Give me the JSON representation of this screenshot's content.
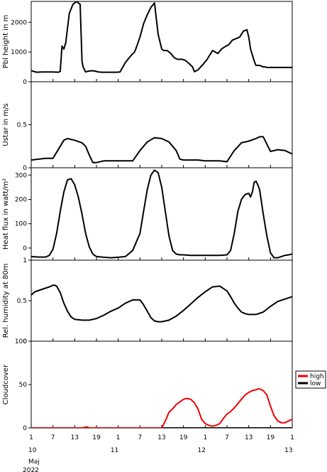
{
  "chart_data": {
    "type": "line",
    "x_axis": {
      "unit": "hours since 10 Maj 2022 01:00",
      "range": [
        0,
        72
      ],
      "tick_values": [
        0,
        6,
        12,
        18,
        24,
        30,
        36,
        42,
        48,
        54,
        60,
        66,
        72
      ],
      "tick_labels": [
        "1",
        "7",
        "13",
        "19",
        "1",
        "7",
        "13",
        "19",
        "1",
        "7",
        "13",
        "19",
        "1"
      ],
      "day_labels": [
        {
          "label": "10",
          "x": 0
        },
        {
          "label": "11",
          "x": 23
        },
        {
          "label": "12",
          "x": 47
        },
        {
          "label": "13",
          "x": 71
        }
      ],
      "month_label": "Maj",
      "year_label": "2022"
    },
    "panels": [
      {
        "ylabel": "Pbl height in m",
        "ylim": [
          0,
          2700
        ],
        "yticks": [
          0,
          1000,
          2000
        ],
        "series": [
          {
            "name": "",
            "color": "#000000",
            "x": [
              0,
              1.5,
              3,
              4.5,
              6,
              7.5,
              8,
              8.5,
              9,
              9.5,
              10.5,
              11.5,
              12.5,
              13.5,
              14,
              14.3,
              15,
              15.5,
              16.5,
              17.5,
              18.5,
              19.5,
              20.5,
              21.5,
              22.5,
              23.5,
              24.5,
              26,
              27.5,
              28.5,
              29,
              30,
              31,
              32,
              33,
              34,
              35,
              36,
              36.5,
              37.5,
              38.5,
              39.5,
              40.5,
              41.5,
              42.5,
              43.5,
              44.5,
              45,
              46,
              47.5,
              48.5,
              50,
              51.5,
              52.5,
              53.5,
              54.5,
              55.5,
              56.5,
              57.5,
              58.5,
              59.5,
              60,
              60.5,
              61,
              61.5,
              62,
              62.5,
              63,
              64,
              64.5,
              65,
              66,
              67,
              68,
              69,
              70,
              71,
              72
            ],
            "y": [
              370,
              320,
              330,
              330,
              330,
              320,
              350,
              1200,
              1100,
              1300,
              2300,
              2600,
              2700,
              2600,
              700,
              500,
              330,
              350,
              370,
              360,
              330,
              320,
              320,
              320,
              320,
              320,
              330,
              650,
              880,
              1000,
              1150,
              1500,
              1950,
              2250,
              2500,
              2650,
              1600,
              1100,
              1050,
              1050,
              950,
              800,
              750,
              760,
              720,
              620,
              500,
              340,
              400,
              600,
              750,
              1050,
              950,
              1100,
              1180,
              1250,
              1400,
              1450,
              1500,
              1700,
              1750,
              1500,
              1100,
              900,
              700,
              550,
              550,
              550,
              500,
              500,
              480,
              480,
              480,
              480,
              480,
              480,
              480,
              480
            ]
          }
        ]
      },
      {
        "ylabel": "Ustar in m/s",
        "ylim": [
          0,
          1.0
        ],
        "yticks": [
          0,
          0.5
        ],
        "series": [
          {
            "name": "",
            "color": "#000000",
            "x": [
              0,
              2,
              4,
              6,
              8,
              9,
              10,
              12,
              14,
              15,
              16,
              17,
              18,
              20,
              22,
              24,
              26,
              28,
              30,
              32,
              34,
              36,
              38,
              40,
              41,
              42,
              44,
              46,
              48,
              50,
              52,
              54,
              56,
              58,
              60,
              62,
              63,
              64,
              66,
              68,
              70,
              72
            ],
            "y": [
              0.09,
              0.1,
              0.11,
              0.11,
              0.25,
              0.32,
              0.34,
              0.32,
              0.29,
              0.25,
              0.15,
              0.06,
              0.06,
              0.08,
              0.08,
              0.08,
              0.08,
              0.08,
              0.2,
              0.3,
              0.35,
              0.34,
              0.3,
              0.2,
              0.1,
              0.09,
              0.09,
              0.09,
              0.08,
              0.08,
              0.08,
              0.07,
              0.2,
              0.29,
              0.31,
              0.34,
              0.36,
              0.36,
              0.19,
              0.21,
              0.2,
              0.16
            ]
          }
        ]
      },
      {
        "ylabel": "Heat flux in watt/m²",
        "ylim": [
          -50,
          330
        ],
        "yticks": [
          0,
          100,
          200,
          300
        ],
        "series": [
          {
            "name": "",
            "color": "#000000",
            "x": [
              0,
              2,
              4,
              5,
              6,
              7,
              8,
              9,
              10,
              11,
              12,
              13,
              14,
              15,
              16,
              17,
              18,
              20,
              22,
              24,
              26,
              28,
              30,
              31,
              32,
              33,
              34,
              35,
              36,
              37,
              38,
              39,
              40,
              41,
              42,
              44,
              46,
              48,
              50,
              52,
              54,
              55,
              56,
              57,
              58,
              59,
              60,
              60.5,
              61,
              61.5,
              62,
              62.5,
              63,
              64,
              65,
              66,
              67,
              68,
              69,
              70,
              71,
              72
            ],
            "y": [
              -35,
              -37,
              -37,
              -30,
              -5,
              60,
              150,
              230,
              280,
              285,
              260,
              210,
              140,
              60,
              5,
              -25,
              -35,
              -38,
              -40,
              -38,
              -35,
              -10,
              60,
              150,
              240,
              300,
              320,
              310,
              250,
              150,
              50,
              -10,
              -25,
              -28,
              -28,
              -30,
              -30,
              -30,
              -30,
              -30,
              -28,
              -10,
              60,
              150,
              200,
              220,
              225,
              210,
              230,
              270,
              275,
              260,
              240,
              140,
              50,
              -20,
              -40,
              -40,
              -35,
              -30,
              -28,
              -25
            ]
          }
        ]
      },
      {
        "ylabel": "Rel. humidity at 80m",
        "ylim": [
          0,
          1.0
        ],
        "yticks": [
          0,
          0.5,
          1.0
        ],
        "series": [
          {
            "name": "",
            "color": "#000000",
            "x": [
              0,
              1,
              3,
              5,
              6,
              6.5,
              7,
              8,
              9,
              10,
              11,
              12,
              14,
              16,
              18,
              20,
              22,
              24,
              26,
              28,
              30,
              31,
              32,
              33,
              34,
              35,
              36,
              38,
              40,
              42,
              44,
              46,
              48,
              50,
              52,
              54,
              55,
              56,
              57,
              58,
              59,
              60,
              62,
              64,
              66,
              68,
              70,
              72
            ],
            "y": [
              0.57,
              0.61,
              0.64,
              0.67,
              0.69,
              0.69,
              0.68,
              0.6,
              0.47,
              0.37,
              0.3,
              0.27,
              0.26,
              0.26,
              0.28,
              0.32,
              0.37,
              0.41,
              0.47,
              0.51,
              0.51,
              0.45,
              0.37,
              0.29,
              0.25,
              0.24,
              0.24,
              0.26,
              0.31,
              0.38,
              0.46,
              0.54,
              0.61,
              0.67,
              0.68,
              0.62,
              0.55,
              0.47,
              0.41,
              0.36,
              0.34,
              0.33,
              0.33,
              0.36,
              0.43,
              0.49,
              0.52,
              0.55
            ]
          }
        ]
      },
      {
        "ylabel": "Cloudcover",
        "ylim": [
          0,
          100
        ],
        "yticks": [
          0,
          50,
          100
        ],
        "series": [
          {
            "name": "high",
            "color": "#ee0000",
            "x": [
              0,
              10,
              14,
              15,
              15.5,
              16,
              24,
              36,
              37,
              38,
              39,
              40,
              41,
              42,
              43,
              44,
              45,
              46,
              47,
              48,
              49,
              50,
              51,
              52,
              53,
              54,
              55,
              56,
              57,
              58,
              59,
              60,
              61,
              62,
              62.5,
              63,
              64,
              65,
              66,
              67,
              68,
              69,
              70,
              71,
              72
            ],
            "y": [
              0,
              0,
              0,
              1,
              1,
              0,
              0,
              0,
              8,
              18,
              22,
              27,
              30,
              33,
              34,
              33,
              29,
              22,
              10,
              5,
              3,
              2,
              3,
              5,
              11,
              16,
              19,
              23,
              28,
              33,
              38,
              41,
              43,
              44,
              45,
              45,
              43,
              38,
              25,
              14,
              8,
              6,
              6,
              8,
              10
            ]
          },
          {
            "name": "low",
            "color": "#000000",
            "x": [
              0,
              72
            ],
            "y": [
              0,
              0
            ]
          }
        ]
      }
    ],
    "legend": {
      "position": "right",
      "panel": 4
    }
  }
}
